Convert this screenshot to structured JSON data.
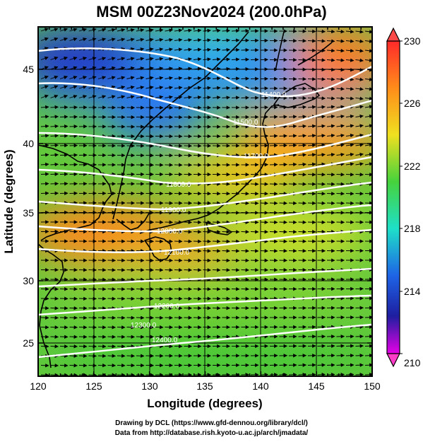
{
  "title": "MSM 00Z23Nov2024 (200.0hPa)",
  "axes": {
    "x_title": "Longitude (degrees)",
    "y_title": "Latitude  (degrees)",
    "x_ticks": [
      "120",
      "125",
      "130",
      "135",
      "140",
      "145",
      "150"
    ],
    "y_ticks": [
      "25",
      "30",
      "35",
      "40",
      "45"
    ],
    "xlim": [
      120,
      150
    ],
    "ylim": [
      22.4,
      47.6
    ]
  },
  "colorbar": {
    "labels": [
      "230",
      "226",
      "222",
      "218",
      "214",
      "210"
    ],
    "colors": [
      "#ff2a2a",
      "#ff8c1a",
      "#f0e020",
      "#46d23c",
      "#1ee0c8",
      "#1e64e6",
      "#1e1ea0",
      "#e600e6"
    ],
    "range": [
      210,
      230
    ]
  },
  "contours": [
    {
      "label": "11400.0"
    },
    {
      "label": "11500.0"
    },
    {
      "label": "11700.0"
    },
    {
      "label": "11800.0"
    },
    {
      "label": "11900.0"
    },
    {
      "label": "12000.0"
    },
    {
      "label": "12100.0"
    },
    {
      "label": "12200.0"
    },
    {
      "label": "12300.0"
    },
    {
      "label": "12400.0"
    }
  ],
  "credits": {
    "line1": "Drawing by DCL (https://www.gfd-dennou.org/library/dcl/)",
    "line2": "Data from http://database.rish.kyoto-u.ac.jp/arch/jmadata/"
  }
}
